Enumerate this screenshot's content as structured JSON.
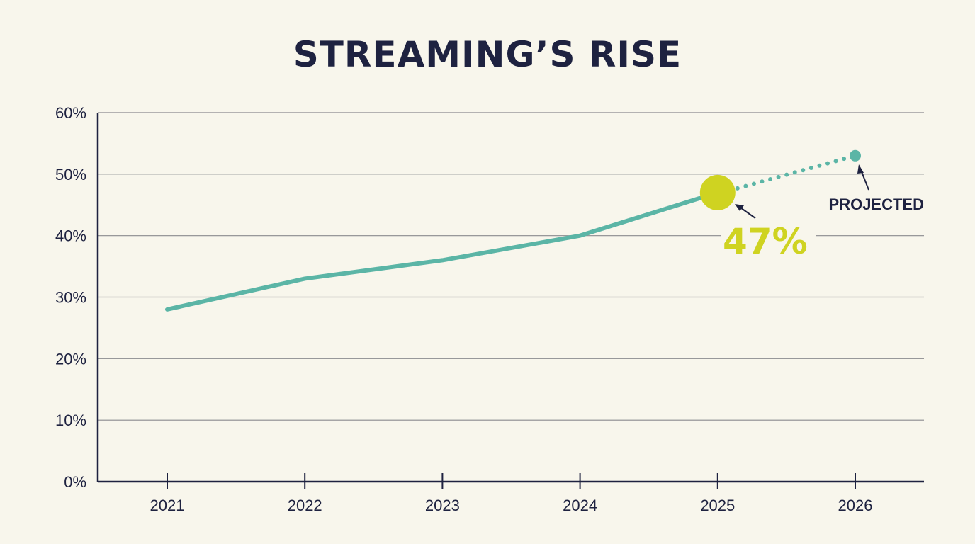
{
  "chart_data": {
    "type": "line",
    "title": "STREAMING’S RISE",
    "xlabel": "",
    "ylabel": "",
    "categories": [
      "2021",
      "2022",
      "2023",
      "2024",
      "2025",
      "2026"
    ],
    "values": [
      28,
      33,
      36,
      40,
      47,
      53
    ],
    "projected_from_index": 4,
    "ylim": [
      0,
      60
    ],
    "yticks": [
      0,
      10,
      20,
      30,
      40,
      50,
      60
    ],
    "ytick_labels": [
      "0%",
      "10%",
      "20%",
      "30%",
      "40%",
      "50%",
      "60%"
    ],
    "grid": true,
    "annotations": [
      {
        "text": "47%",
        "target": "2025"
      },
      {
        "text": "PROJECTED",
        "target": "2026"
      }
    ],
    "colors": {
      "line": "#5bb5a6",
      "highlight": "#cfd321",
      "text": "#1e2240",
      "grid": "#8a8a8f",
      "background": "#f8f6ec"
    }
  }
}
